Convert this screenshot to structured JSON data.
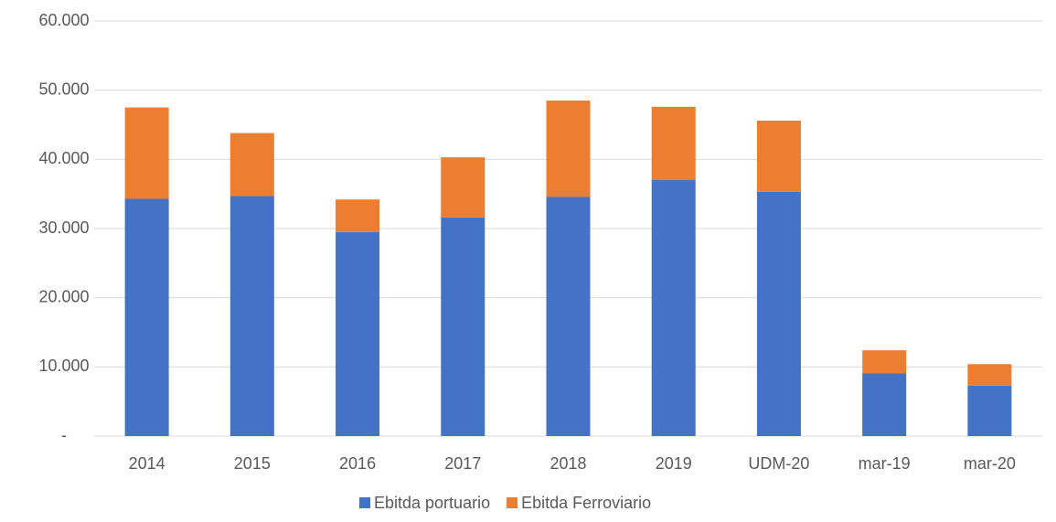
{
  "chart_data": {
    "type": "stacked_bar",
    "categories": [
      "2014",
      "2015",
      "2016",
      "2017",
      "2018",
      "2019",
      "UDM-20",
      "mar-19",
      "mar-20"
    ],
    "series": [
      {
        "name": "Ebitda portuario",
        "color": "#4472c4",
        "values": [
          34300,
          34700,
          29500,
          31600,
          34600,
          37000,
          35300,
          9100,
          7300
        ]
      },
      {
        "name": "Ebitda Ferroviario",
        "color": "#ed7d31",
        "values": [
          13200,
          9100,
          4700,
          8700,
          13900,
          10600,
          10300,
          3300,
          3100
        ]
      }
    ],
    "ylim": [
      0,
      60000
    ],
    "yticks": [
      {
        "value": 0,
        "label": "-"
      },
      {
        "value": 10000,
        "label": "10.000"
      },
      {
        "value": 20000,
        "label": "20.000"
      },
      {
        "value": 30000,
        "label": "30.000"
      },
      {
        "value": 40000,
        "label": "40.000"
      },
      {
        "value": 50000,
        "label": "50.000"
      },
      {
        "value": 60000,
        "label": "60.000"
      }
    ],
    "grid": true,
    "legend": "bottom"
  }
}
